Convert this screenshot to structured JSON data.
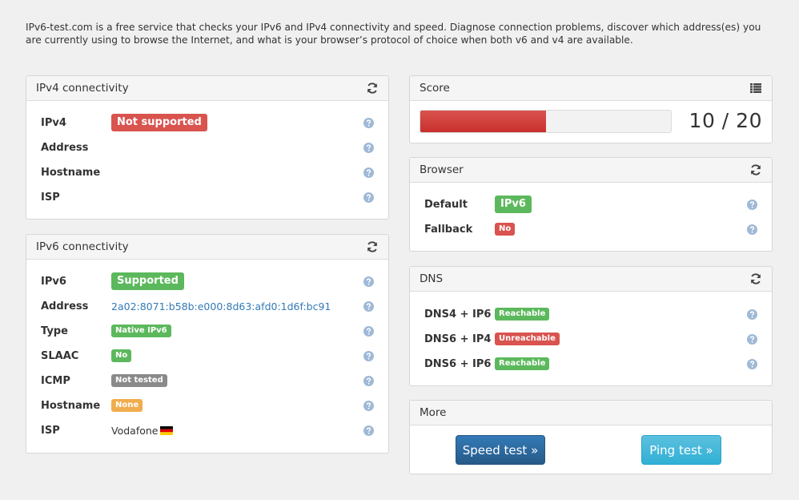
{
  "intro": "IPv6-test.com is a free service that checks your IPv6 and IPv4 connectivity and speed. Diagnose connection problems, discover which address(es) you are currently using to browse the Internet, and what is your browser’s protocol of choice when both v6 and v4 are available.",
  "ipv4": {
    "title": "IPv4 connectivity",
    "rows": [
      {
        "label": "IPv4",
        "badge": "Not supported"
      },
      {
        "label": "Address"
      },
      {
        "label": "Hostname"
      },
      {
        "label": "ISP"
      }
    ]
  },
  "ipv6": {
    "title": "IPv6 connectivity",
    "rows": [
      {
        "label": "IPv6",
        "badge": "Supported"
      },
      {
        "label": "Address",
        "value": "2a02:8071:b58b:e000:8d63:afd0:1d6f:bc91"
      },
      {
        "label": "Type",
        "badge": "Native IPv6"
      },
      {
        "label": "SLAAC",
        "badge": "No"
      },
      {
        "label": "ICMP",
        "badge": "Not tested"
      },
      {
        "label": "Hostname",
        "badge": "None"
      },
      {
        "label": "ISP",
        "value": "Vodafone"
      }
    ]
  },
  "score": {
    "title": "Score",
    "current": 10,
    "max": 20,
    "text": "10 / 20"
  },
  "browser": {
    "title": "Browser",
    "rows": [
      {
        "label": "Default",
        "badge": "IPv6"
      },
      {
        "label": "Fallback",
        "badge": "No"
      }
    ]
  },
  "dns": {
    "title": "DNS",
    "rows": [
      {
        "label": "DNS4 + IP6",
        "badge": "Reachable"
      },
      {
        "label": "DNS6 + IP4",
        "badge": "Unreachable"
      },
      {
        "label": "DNS6 + IP6",
        "badge": "Reachable"
      }
    ]
  },
  "more": {
    "title": "More",
    "speed_test": "Speed test »",
    "ping_test": "Ping test »"
  },
  "colors": {
    "red": "#d9534f",
    "green": "#5cb85c",
    "gray": "#8a8a8a",
    "orange": "#f0ad4e",
    "link": "#337ab7",
    "help": "#9fb9d6"
  },
  "icons": {
    "refresh": "refresh-icon",
    "list": "list-icon",
    "help": "question-circle-icon",
    "flag": "germany-flag-icon"
  }
}
